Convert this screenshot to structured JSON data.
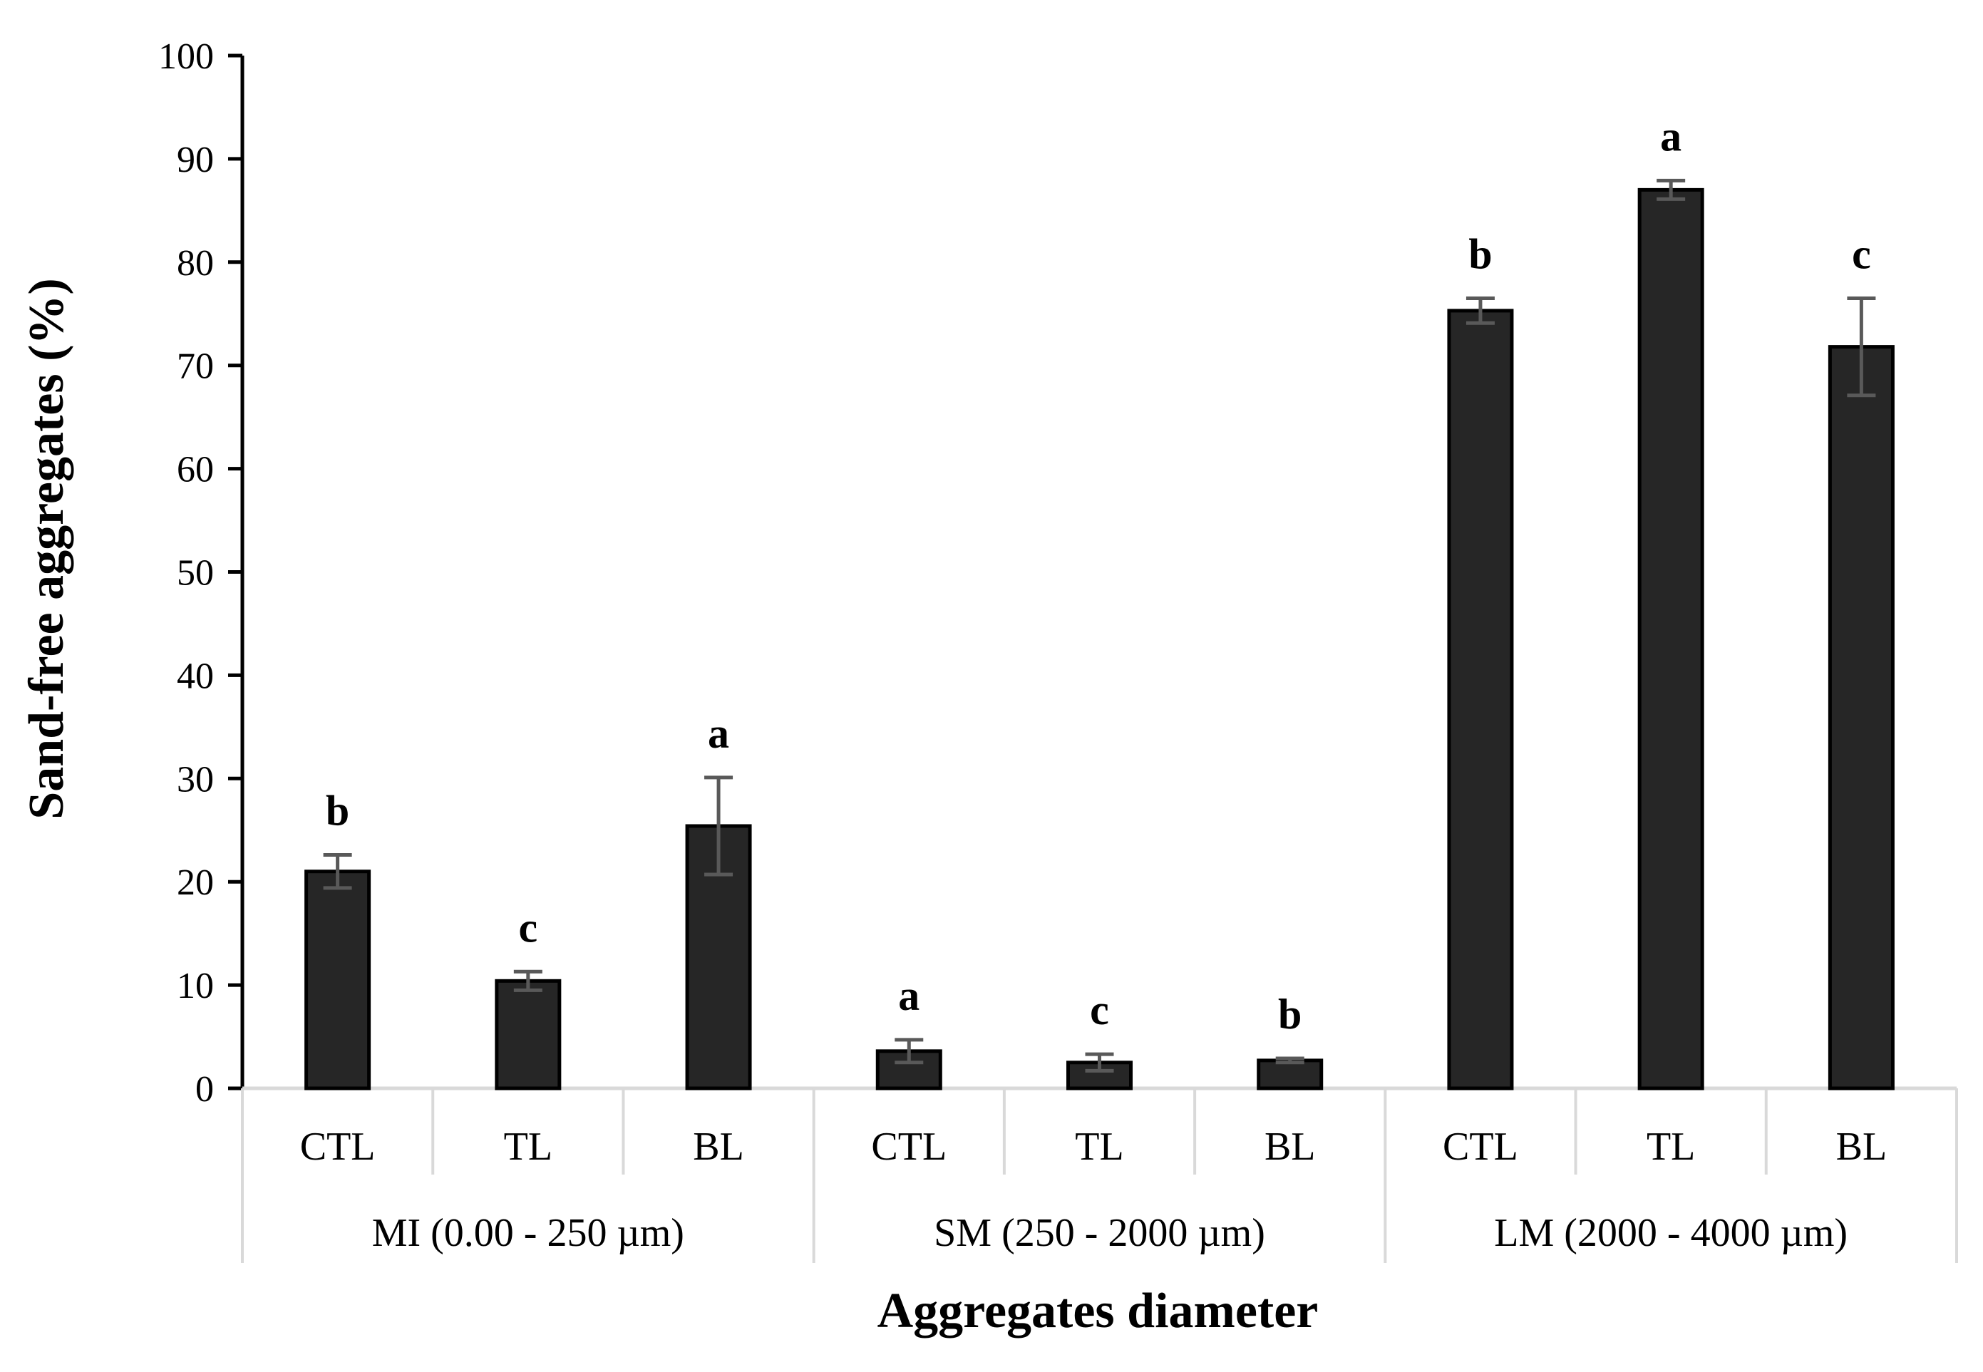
{
  "chart_data": {
    "type": "bar",
    "xlabel": "Aggregates diameter",
    "ylabel": "Sand-free aggregates  (%)",
    "ylim": [
      0,
      100
    ],
    "yticks": [
      0,
      10,
      20,
      30,
      40,
      50,
      60,
      70,
      80,
      90,
      100
    ],
    "groups": [
      {
        "label": "MI (0.00 - 250 µm)",
        "categories": [
          "CTL",
          "TL",
          "BL"
        ]
      },
      {
        "label": "SM (250 - 2000 µm)",
        "categories": [
          "CTL",
          "TL",
          "BL"
        ]
      },
      {
        "label": "LM (2000 - 4000 µm)",
        "categories": [
          "CTL",
          "TL",
          "BL"
        ]
      }
    ],
    "categories": [
      "CTL",
      "TL",
      "BL",
      "CTL",
      "TL",
      "BL",
      "CTL",
      "TL",
      "BL"
    ],
    "values": [
      21.0,
      10.4,
      25.4,
      3.6,
      2.5,
      2.7,
      75.3,
      87.0,
      71.8
    ],
    "errors": [
      1.6,
      0.9,
      4.7,
      1.1,
      0.8,
      0.2,
      1.2,
      0.9,
      4.7
    ],
    "significance_letters": [
      "b",
      "c",
      "a",
      "a",
      "c",
      "b",
      "b",
      "a",
      "c"
    ],
    "grid": false,
    "colors": {
      "bar": "#262626",
      "bar_edge": "#000000",
      "error_bar": "#595959",
      "axis": "#000000",
      "category_axis_lines": "#d9d9d9"
    }
  }
}
